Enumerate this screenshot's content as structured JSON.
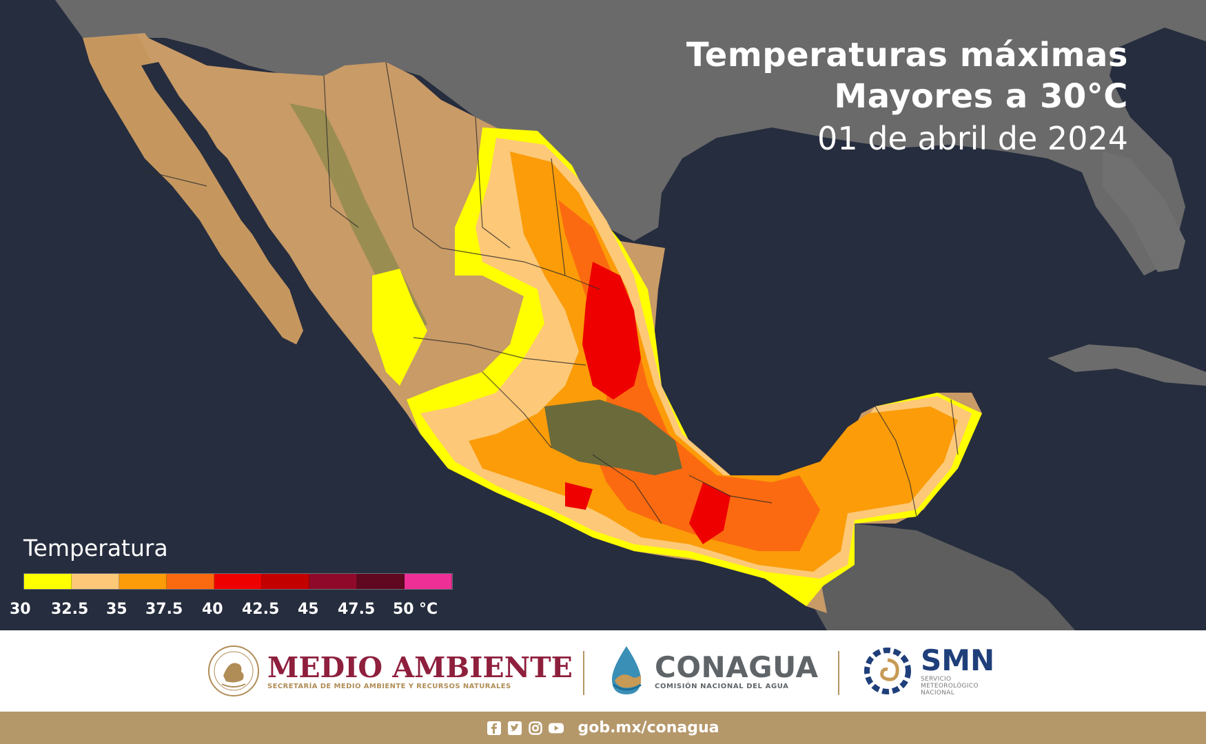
{
  "title": {
    "line1": "Temperaturas máximas",
    "line2": "Mayores a 30°C",
    "date": "01 de abril de 2024"
  },
  "legend": {
    "title": "Temperatura",
    "unit": "°C",
    "ticks": [
      "30",
      "32.5",
      "35",
      "37.5",
      "40",
      "42.5",
      "45",
      "47.5",
      "50"
    ],
    "colors": [
      "#ffff00",
      "#fdc878",
      "#fb9c08",
      "#fb6a10",
      "#ef0000",
      "#c30000",
      "#8f0a2a",
      "#5f0820",
      "#ee2f95"
    ]
  },
  "map": {
    "ocean_color": "#262d3e",
    "land_color": "#c99b67",
    "neighbor_land_color": "#6c6c6c"
  },
  "logos": {
    "semarnat": {
      "name": "MEDIO AMBIENTE",
      "subtitle": "SECRETARÍA DE MEDIO AMBIENTE Y RECURSOS NATURALES",
      "color": "#8e1f3d"
    },
    "conagua": {
      "name": "CONAGUA",
      "subtitle": "COMISIÓN NACIONAL DEL AGUA"
    },
    "smn": {
      "name": "SMN",
      "subtitle_lines": [
        "SERVICIO",
        "METEOROLÓGICO",
        "NACIONAL"
      ]
    }
  },
  "footer": {
    "url": "gob.mx/conagua",
    "icons": [
      "facebook-icon",
      "twitter-icon",
      "instagram-icon",
      "youtube-icon"
    ],
    "color": "#b5986a"
  }
}
